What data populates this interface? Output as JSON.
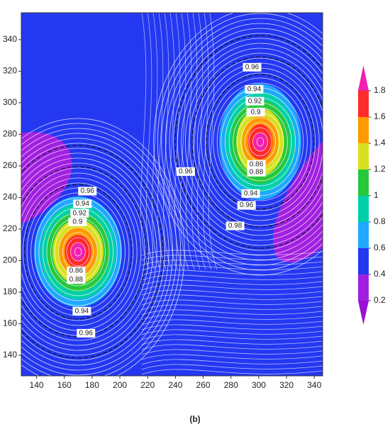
{
  "chart_data": {
    "type": "contour",
    "xlim": [
      129,
      346
    ],
    "ylim": [
      127,
      357
    ],
    "xticks": [
      140,
      160,
      180,
      200,
      220,
      240,
      260,
      280,
      300,
      320,
      340
    ],
    "yticks": [
      140,
      160,
      180,
      200,
      220,
      240,
      260,
      280,
      300,
      320,
      340
    ],
    "background_color": "#2438f2",
    "streamline_color": "#ffffff",
    "contour_labels": [
      {
        "x": 295.2,
        "y": 322.5,
        "value": 0.96
      },
      {
        "x": 296.7,
        "y": 308.5,
        "value": 0.94
      },
      {
        "x": 297.2,
        "y": 301,
        "value": 0.92
      },
      {
        "x": 297.8,
        "y": 294,
        "value": 0.9
      },
      {
        "x": 298.3,
        "y": 261,
        "value": 0.86
      },
      {
        "x": 298.3,
        "y": 256,
        "value": 0.88
      },
      {
        "x": 294.2,
        "y": 242.5,
        "value": 0.94
      },
      {
        "x": 291.2,
        "y": 235,
        "value": 0.96
      },
      {
        "x": 283,
        "y": 222,
        "value": 0.98
      },
      {
        "x": 247.4,
        "y": 256.4,
        "value": 0.96
      },
      {
        "x": 176.6,
        "y": 244,
        "value": 0.96
      },
      {
        "x": 173,
        "y": 236,
        "value": 0.94
      },
      {
        "x": 171,
        "y": 230,
        "value": 0.92
      },
      {
        "x": 169.5,
        "y": 224.5,
        "value": 0.9
      },
      {
        "x": 168.5,
        "y": 193.5,
        "value": 0.86
      },
      {
        "x": 168.5,
        "y": 188,
        "value": 0.88
      },
      {
        "x": 172.6,
        "y": 168,
        "value": 0.94
      },
      {
        "x": 175.6,
        "y": 154,
        "value": 0.96
      }
    ],
    "colorbar": {
      "ticks": [
        0.2,
        0.4,
        0.6,
        0.8,
        1,
        1.2,
        1.4,
        1.6,
        1.8
      ],
      "colors": [
        "#9a10d8",
        "#a020e0",
        "#2438f2",
        "#1ea8ff",
        "#00d0a8",
        "#28c83c",
        "#d8e020",
        "#ff9a00",
        "#ff2a2a",
        "#f020b0"
      ]
    },
    "caption": "(b)"
  }
}
